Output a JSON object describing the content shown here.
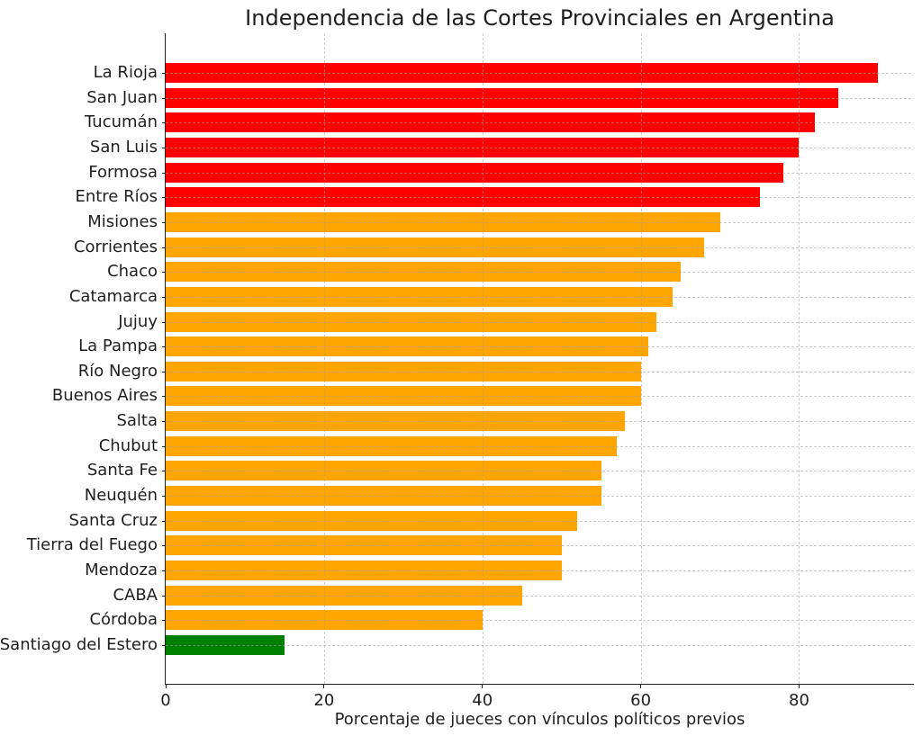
{
  "chart_data": {
    "type": "bar",
    "orientation": "horizontal",
    "title": "Independencia de las Cortes Provinciales en Argentina",
    "xlabel": "Porcentaje de jueces con vínculos políticos previos",
    "ylabel": "",
    "xlim": [
      0,
      94.5
    ],
    "xticks": [
      0,
      20,
      40,
      60,
      80
    ],
    "grid": true,
    "grid_style": "dashed",
    "legend": "none",
    "categories": [
      "La Rioja",
      "San Juan",
      "Tucumán",
      "San Luis",
      "Formosa",
      "Entre Ríos",
      "Misiones",
      "Corrientes",
      "Chaco",
      "Catamarca",
      "Jujuy",
      "La Pampa",
      "Río Negro",
      "Buenos Aires",
      "Salta",
      "Chubut",
      "Santa Fe",
      "Neuquén",
      "Santa Cruz",
      "Tierra del Fuego",
      "Mendoza",
      "CABA",
      "Córdoba",
      "Santiago del Estero"
    ],
    "values": [
      90,
      85,
      82,
      80,
      78,
      75,
      70,
      68,
      65,
      64,
      62,
      61,
      60,
      60,
      58,
      57,
      55,
      55,
      52,
      50,
      50,
      45,
      40,
      15
    ],
    "bar_colors": [
      "#ff0000",
      "#ff0000",
      "#ff0000",
      "#ff0000",
      "#ff0000",
      "#ff0000",
      "#ffa500",
      "#ffa500",
      "#ffa500",
      "#ffa500",
      "#ffa500",
      "#ffa500",
      "#ffa500",
      "#ffa500",
      "#ffa500",
      "#ffa500",
      "#ffa500",
      "#ffa500",
      "#ffa500",
      "#ffa500",
      "#ffa500",
      "#ffa500",
      "#ffa500",
      "#008000"
    ],
    "colors": {
      "high_risk": "#ff0000",
      "medium_risk": "#ffa500",
      "low_risk": "#008000",
      "grid": "#c9c9c9",
      "axis": "#222222",
      "text": "#1f1f1f",
      "background": "#ffffff"
    }
  }
}
